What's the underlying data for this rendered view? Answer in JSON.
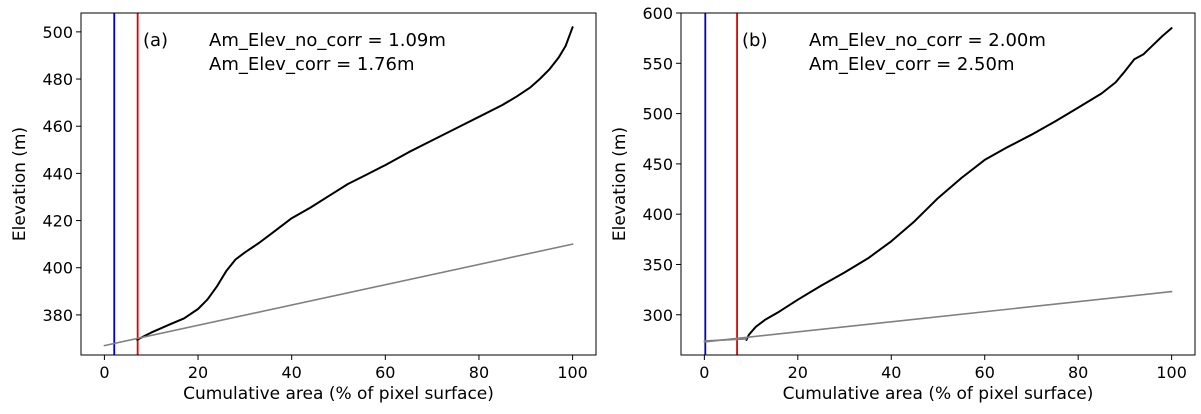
{
  "chart_data": [
    {
      "type": "line",
      "panel_label": "(a)",
      "annotations": [
        "Am_Elev_no_corr = 1.09m",
        "Am_Elev_corr = 1.76m"
      ],
      "xlabel": "Cumulative area (% of pixel surface)",
      "ylabel": "Elevation (m)",
      "xlim": [
        -5,
        105
      ],
      "ylim": [
        363,
        508
      ],
      "xticks": [
        0,
        20,
        40,
        60,
        80,
        100
      ],
      "yticks": [
        380,
        400,
        420,
        440,
        460,
        480,
        500
      ],
      "grid": false,
      "vlines": [
        {
          "x": 2.1,
          "color": "#0000cc"
        },
        {
          "x": 7.1,
          "color": "#dd0000"
        }
      ],
      "series": [
        {
          "color": "#000000",
          "x": [
            7,
            10,
            14,
            17,
            20,
            22,
            24,
            26,
            28,
            30,
            33,
            36,
            40,
            44,
            48,
            52,
            56,
            60,
            65,
            70,
            75,
            80,
            85,
            88,
            91,
            93,
            95,
            97,
            98.5,
            100
          ],
          "y": [
            369.5,
            372.5,
            376,
            378.5,
            382.5,
            386.5,
            392,
            398.5,
            403.5,
            406.5,
            410.5,
            415,
            421,
            425.5,
            430.5,
            435.5,
            439.5,
            443.5,
            449,
            454,
            459,
            464,
            469,
            472.5,
            476.5,
            480,
            484,
            489,
            494,
            502
          ]
        },
        {
          "color": "#808080",
          "x": [
            0,
            100
          ],
          "y": [
            367,
            410
          ]
        }
      ]
    },
    {
      "type": "line",
      "panel_label": "(b)",
      "annotations": [
        "Am_Elev_no_corr = 2.00m",
        "Am_Elev_corr = 2.50m"
      ],
      "xlabel": "Cumulative area (% of pixel surface)",
      "ylabel": "Elevation (m)",
      "xlim": [
        -5,
        105
      ],
      "ylim": [
        260,
        600
      ],
      "xticks": [
        0,
        20,
        40,
        60,
        80,
        100
      ],
      "yticks": [
        300,
        350,
        400,
        450,
        500,
        550,
        600
      ],
      "grid": false,
      "vlines": [
        {
          "x": 0.2,
          "color": "#0000cc"
        },
        {
          "x": 7,
          "color": "#dd0000"
        }
      ],
      "series": [
        {
          "color": "#000000",
          "x": [
            9,
            9.5,
            11,
            13,
            16,
            20,
            25,
            30,
            35,
            40,
            45,
            50,
            55,
            60,
            65,
            70,
            75,
            80,
            85,
            88,
            90,
            92,
            94,
            96,
            98,
            100
          ],
          "y": [
            275,
            280,
            288,
            295,
            303,
            315,
            329,
            342,
            356,
            373,
            393,
            416,
            436,
            454,
            467,
            479,
            492,
            506,
            520,
            531,
            542,
            554,
            559,
            568,
            577,
            585
          ]
        },
        {
          "color": "#808080",
          "x": [
            0,
            9
          ],
          "y": [
            274,
            276
          ]
        },
        {
          "color": "#808080",
          "x": [
            0,
            100
          ],
          "y": [
            273,
            323
          ]
        }
      ]
    }
  ]
}
